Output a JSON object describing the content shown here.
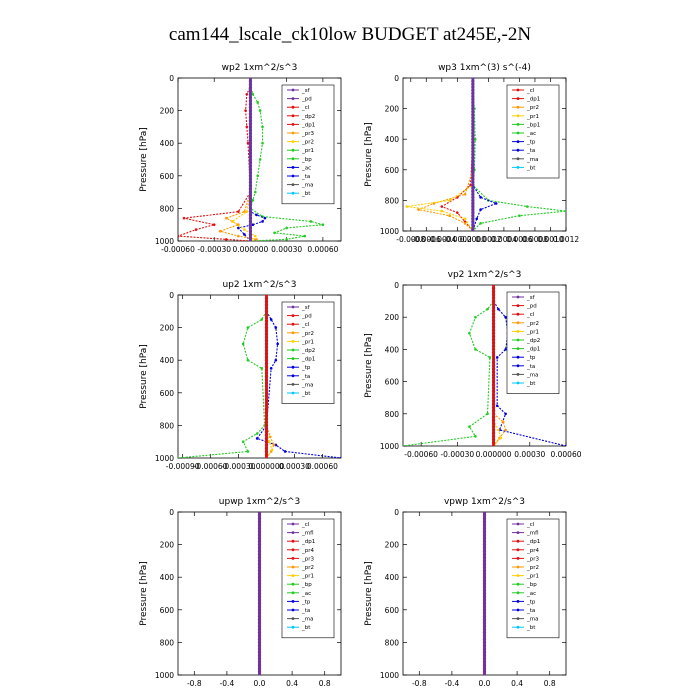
{
  "figure": {
    "title": "cam144_lscale_ck10low  BUDGET at245E,-2N"
  },
  "colors": {
    "purple": "#7030a0",
    "red": "#e01010",
    "orange": "#ff9900",
    "yellow": "#ffd000",
    "green": "#22cc22",
    "blue": "#0000dd",
    "gray": "#555555",
    "cyan": "#00c8ff"
  },
  "chart_data": [
    {
      "type": "line",
      "title": "wp2  1xm^2/s^3",
      "ylabel": "Pressure [hPa]",
      "xlim": [
        -0.0006,
        0.00075
      ],
      "ylim": [
        1000,
        0
      ],
      "xticks": [
        -0.0006,
        -0.0003,
        0,
        0.0003,
        0.0006
      ],
      "xticklabels": [
        "-0.00060",
        "-0.00030",
        "0.000000",
        "0.00030",
        "0.00060"
      ],
      "yticks": [
        0,
        200,
        400,
        600,
        800,
        1000
      ],
      "legend": [
        "_sf",
        "_pd",
        "_cl",
        "_dp2",
        "_dp1",
        "_pr3",
        "_pr2",
        "_pr1",
        "_bp",
        "_ac",
        "_ta",
        "_ma",
        "_bt"
      ],
      "legend_colors": [
        "purple",
        "purple",
        "red",
        "red",
        "red",
        "orange",
        "yellow",
        "green",
        "green",
        "blue",
        "blue",
        "gray",
        "cyan"
      ],
      "series": [
        {
          "color": "green",
          "x": [
            0,
            0,
            2e-05,
            6e-05,
            8e-05,
            0.0001,
            0.0001,
            8e-05,
            6e-05,
            4e-05,
            2e-05,
            0,
            0.0001,
            0.0005,
            0.0006,
            0.0003,
            0.0002,
            0.00045,
            0.0003,
            0
          ],
          "y": [
            0,
            50,
            100,
            150,
            200,
            300,
            400,
            500,
            600,
            700,
            750,
            800,
            850,
            880,
            900,
            920,
            950,
            970,
            990,
            1000
          ]
        },
        {
          "color": "blue",
          "x": [
            0,
            0,
            0,
            0,
            0,
            0,
            0,
            5e-05,
            0.00012,
            0.0001,
            2e-05,
            -0.0001,
            -5e-05,
            0
          ],
          "y": [
            0,
            200,
            400,
            600,
            700,
            800,
            820,
            840,
            860,
            880,
            900,
            920,
            960,
            1000
          ]
        },
        {
          "color": "red",
          "x": [
            0,
            0,
            -3e-05,
            -4e-05,
            -3e-05,
            -2e-05,
            0,
            -0.0001,
            -0.00055,
            -0.0003,
            -0.00045,
            -0.0006,
            -0.0002,
            0
          ],
          "y": [
            0,
            50,
            100,
            200,
            300,
            400,
            700,
            820,
            860,
            900,
            930,
            970,
            990,
            1000
          ]
        },
        {
          "color": "orange",
          "x": [
            0,
            0,
            0,
            -5e-05,
            -0.0002,
            -0.0001,
            -0.00025,
            -0.0001,
            5e-05,
            0
          ],
          "y": [
            0,
            200,
            700,
            820,
            860,
            900,
            940,
            970,
            990,
            1000
          ]
        },
        {
          "color": "yellow",
          "x": [
            0,
            0,
            -3e-05,
            -0.00015,
            -5e-05,
            4e-05,
            0
          ],
          "y": [
            0,
            700,
            820,
            880,
            930,
            970,
            1000
          ]
        },
        {
          "color": "cyan",
          "x": [
            0,
            0,
            0
          ],
          "y": [
            0,
            500,
            1000
          ]
        },
        {
          "color": "purple",
          "x": [
            0,
            0,
            0
          ],
          "y": [
            0,
            500,
            1000
          ]
        }
      ]
    },
    {
      "type": "line",
      "title": "wp3  1xm^(3) s^(-4)",
      "ylabel": "Pressure [hPa]",
      "xlim": [
        -0.0009,
        0.0012
      ],
      "ylim": [
        1000,
        0
      ],
      "xticks": [
        -0.0008,
        -0.0006,
        -0.0004,
        -0.0002,
        0,
        0.0002,
        0.0004,
        0.0006,
        0.0008,
        0.001,
        0.0012
      ],
      "xticklabels": [
        "-0.0008",
        "-0.0006",
        "-0.0004",
        "-0.0002",
        "0.0000",
        "0.0002",
        "0.0004",
        "0.0006",
        "0.0008",
        "0.0010",
        "0.0012"
      ],
      "yticks": [
        0,
        200,
        400,
        600,
        800,
        1000
      ],
      "legend": [
        "_cl",
        "_dp1",
        "_pr2",
        "_pr1",
        "_bp1",
        "_ac",
        "_tp",
        "_ta",
        "_ma",
        "_bt"
      ],
      "legend_colors": [
        "red",
        "red",
        "orange",
        "yellow",
        "green",
        "green",
        "blue",
        "blue",
        "gray",
        "cyan"
      ],
      "series": [
        {
          "color": "green",
          "x": [
            0,
            0,
            2e-05,
            3e-05,
            2e-05,
            0,
            0.0002,
            0.0007,
            0.0012,
            0.0006,
            0.0001,
            0
          ],
          "y": [
            0,
            100,
            200,
            400,
            600,
            700,
            800,
            840,
            870,
            900,
            950,
            1000
          ]
        },
        {
          "color": "blue",
          "x": [
            0,
            0,
            0.0001,
            0.0003,
            0.0001,
            5e-05,
            0
          ],
          "y": [
            0,
            700,
            780,
            820,
            860,
            920,
            1000
          ]
        },
        {
          "color": "red",
          "x": [
            0,
            0,
            -3e-05,
            -0.0002,
            -0.0004,
            -0.0002,
            -0.0001,
            0
          ],
          "y": [
            0,
            400,
            700,
            780,
            840,
            880,
            940,
            1000
          ]
        },
        {
          "color": "orange",
          "x": [
            0,
            0,
            -0.0001,
            -0.0005,
            -0.0007,
            -0.0003,
            -0.0001,
            0
          ],
          "y": [
            0,
            600,
            760,
            820,
            860,
            900,
            950,
            1000
          ]
        },
        {
          "color": "yellow",
          "x": [
            0,
            0,
            -0.0003,
            -0.00085,
            -0.0004,
            -0.0001,
            0
          ],
          "y": [
            0,
            700,
            800,
            840,
            870,
            920,
            1000
          ]
        },
        {
          "color": "cyan",
          "x": [
            0,
            0,
            0
          ],
          "y": [
            0,
            500,
            1000
          ]
        },
        {
          "color": "purple",
          "x": [
            0,
            0,
            0
          ],
          "y": [
            0,
            500,
            1000
          ]
        }
      ]
    },
    {
      "type": "line",
      "title": "up2  1xm^2/s^3",
      "ylabel": "Pressure [hPa]",
      "xlim": [
        -0.00095,
        0.0008
      ],
      "ylim": [
        1000,
        0
      ],
      "xticks": [
        -0.0009,
        -0.0006,
        -0.0003,
        0,
        0.0003,
        0.0006
      ],
      "xticklabels": [
        "-0.00090",
        "-0.00060",
        "-0.00030",
        "0.000000",
        "0.00030",
        "0.00060"
      ],
      "yticks": [
        0,
        200,
        400,
        600,
        800,
        1000
      ],
      "legend": [
        "_sf",
        "_pd",
        "_cl",
        "_pr2",
        "_pr1",
        "_dp2",
        "_dp1",
        "_tp",
        "_ta",
        "_ma",
        "_bt"
      ],
      "legend_colors": [
        "purple",
        "red",
        "red",
        "orange",
        "yellow",
        "green",
        "green",
        "blue",
        "blue",
        "gray",
        "cyan"
      ],
      "series": [
        {
          "color": "green",
          "x": [
            0,
            0,
            -5e-05,
            -0.0002,
            -0.00025,
            -0.0002,
            -5e-05,
            -2e-05,
            -0.0001,
            -0.00025,
            -0.0002,
            -0.00095
          ],
          "y": [
            0,
            100,
            150,
            200,
            300,
            400,
            450,
            800,
            850,
            900,
            960,
            1000
          ]
        },
        {
          "color": "blue",
          "x": [
            0,
            0,
            5e-05,
            0.0001,
            0.00012,
            0.0001,
            5e-05,
            0,
            -0.0001,
            0.0001,
            0.0002,
            0.0008
          ],
          "y": [
            0,
            100,
            150,
            200,
            300,
            400,
            450,
            800,
            880,
            920,
            960,
            1000
          ]
        },
        {
          "color": "orange",
          "x": [
            0,
            0,
            4e-05,
            8e-05,
            5e-05,
            0
          ],
          "y": [
            0,
            800,
            870,
            920,
            960,
            1000
          ]
        },
        {
          "color": "yellow",
          "x": [
            0,
            0,
            3e-05,
            6e-05,
            0
          ],
          "y": [
            0,
            850,
            900,
            950,
            1000
          ]
        },
        {
          "color": "cyan",
          "x": [
            0,
            0,
            0
          ],
          "y": [
            0,
            500,
            1000
          ]
        },
        {
          "color": "red",
          "x": [
            0,
            0,
            0
          ],
          "y": [
            0,
            500,
            1000
          ]
        }
      ]
    },
    {
      "type": "line",
      "title": "vp2  1xm^2/s^3",
      "ylabel": "Pressure [hPa]",
      "xlim": [
        -0.00075,
        0.0006
      ],
      "ylim": [
        1000,
        0
      ],
      "xticks": [
        -0.0006,
        -0.0003,
        0,
        0.0003,
        0.0006
      ],
      "xticklabels": [
        "-0.00060",
        "-0.00030",
        "0.000000",
        "0.00030",
        "0.00060"
      ],
      "yticks": [
        0,
        200,
        400,
        600,
        800,
        1000
      ],
      "legend": [
        "_sf",
        "_pd",
        "_cl",
        "_pr2",
        "_pr1",
        "_dp2",
        "_dp1",
        "_tp",
        "_ta",
        "_ma",
        "_bt"
      ],
      "legend_colors": [
        "purple",
        "red",
        "red",
        "orange",
        "yellow",
        "green",
        "green",
        "blue",
        "blue",
        "gray",
        "cyan"
      ],
      "series": [
        {
          "color": "green",
          "x": [
            0,
            0,
            -5e-05,
            -0.00015,
            -0.0002,
            -0.00015,
            -3e-05,
            -5e-05,
            -0.0002,
            -0.00015,
            -0.00075
          ],
          "y": [
            0,
            100,
            150,
            200,
            300,
            400,
            450,
            800,
            880,
            940,
            1000
          ]
        },
        {
          "color": "blue",
          "x": [
            0,
            0,
            4e-05,
            0.0001,
            0.00012,
            0.0001,
            3e-05,
            3e-05,
            0.0001,
            5e-05,
            0.0006
          ],
          "y": [
            0,
            100,
            150,
            200,
            300,
            400,
            450,
            750,
            800,
            900,
            1000
          ]
        },
        {
          "color": "orange",
          "x": [
            0,
            0,
            8e-05,
            0.0001,
            5e-05,
            0
          ],
          "y": [
            0,
            800,
            850,
            900,
            950,
            1000
          ]
        },
        {
          "color": "yellow",
          "x": [
            0,
            0,
            4e-05,
            6e-05,
            0
          ],
          "y": [
            0,
            850,
            900,
            950,
            1000
          ]
        },
        {
          "color": "cyan",
          "x": [
            0,
            0,
            0
          ],
          "y": [
            0,
            500,
            1000
          ]
        },
        {
          "color": "red",
          "x": [
            0,
            0,
            0
          ],
          "y": [
            0,
            500,
            1000
          ]
        }
      ]
    },
    {
      "type": "line",
      "title": "upwp  1xm^2/s^3",
      "ylabel": "Pressure [hPa]",
      "xlim": [
        -1.0,
        1.0
      ],
      "ylim": [
        1000,
        0
      ],
      "xticks": [
        -0.8,
        -0.4,
        0,
        0.4,
        0.8
      ],
      "xticklabels": [
        "-0.8",
        "-0.4",
        "0.0",
        "0.4",
        "0.8"
      ],
      "yticks": [
        0,
        200,
        400,
        600,
        800,
        1000
      ],
      "legend": [
        "_cl",
        "_mfl",
        "_dp1",
        "_pr4",
        "_pr3",
        "_pr2",
        "_pr1",
        "_bp",
        "_ac",
        "_tp",
        "_ta",
        "_ma",
        "_bt"
      ],
      "legend_colors": [
        "purple",
        "purple",
        "red",
        "red",
        "red",
        "orange",
        "yellow",
        "green",
        "green",
        "blue",
        "blue",
        "gray",
        "cyan"
      ],
      "series": [
        {
          "color": "red",
          "x": [
            0,
            0,
            0
          ],
          "y": [
            0,
            500,
            1000
          ]
        },
        {
          "color": "purple",
          "x": [
            0,
            0,
            0
          ],
          "y": [
            0,
            500,
            1000
          ]
        }
      ]
    },
    {
      "type": "line",
      "title": "vpwp  1xm^2/s^3",
      "ylabel": "Pressure [hPa]",
      "xlim": [
        -1.0,
        1.0
      ],
      "ylim": [
        1000,
        0
      ],
      "xticks": [
        -0.8,
        -0.4,
        0,
        0.4,
        0.8
      ],
      "xticklabels": [
        "-0.8",
        "-0.4",
        "0.0",
        "0.4",
        "0.8"
      ],
      "yticks": [
        0,
        200,
        400,
        600,
        800,
        1000
      ],
      "legend": [
        "_cl",
        "_mfl",
        "_dp1",
        "_pr4",
        "_pr3",
        "_pr2",
        "_pr1",
        "_bp",
        "_ac",
        "_tp",
        "_ta",
        "_ma",
        "_bt"
      ],
      "legend_colors": [
        "purple",
        "purple",
        "red",
        "red",
        "red",
        "orange",
        "yellow",
        "green",
        "green",
        "blue",
        "blue",
        "gray",
        "cyan"
      ],
      "series": [
        {
          "color": "red",
          "x": [
            0,
            0,
            0
          ],
          "y": [
            0,
            500,
            1000
          ]
        },
        {
          "color": "purple",
          "x": [
            0,
            0,
            0
          ],
          "y": [
            0,
            500,
            1000
          ]
        }
      ]
    }
  ]
}
